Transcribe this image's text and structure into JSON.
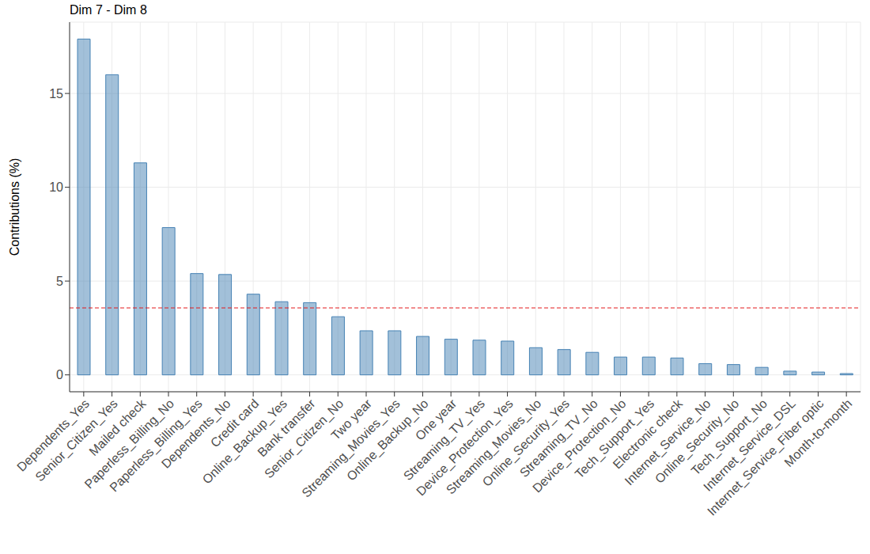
{
  "chart_data": {
    "type": "bar",
    "title": "Dim 7 - Dim 8",
    "y_label": "Contributions (%)",
    "categories": [
      "Dependents_Yes",
      "Senior_Citizen_Yes",
      "Mailed check",
      "Paperless_Billing_No",
      "Paperless_Billing_Yes",
      "Dependents_No",
      "Credit card",
      "Online_Backup_Yes",
      "Bank transfer",
      "Senior_Citizen_No",
      "Two year",
      "Streaming_Movies_Yes",
      "Online_Backup_No",
      "One year",
      "Streaming_TV_Yes",
      "Device_Protection_Yes",
      "Streaming_Movies_No",
      "Online_Security_Yes",
      "Streaming_TV_No",
      "Device_Protection_No",
      "Tech_Support_Yes",
      "Electronic check",
      "Internet_Service_No",
      "Online_Security_No",
      "Tech_Support_No",
      "Internet_Service_DSL",
      "Internet_Service_Fiber optic",
      "Month-to-month"
    ],
    "values": [
      17.9,
      16.0,
      11.3,
      7.85,
      5.4,
      5.35,
      4.3,
      3.9,
      3.85,
      3.1,
      2.35,
      2.35,
      2.05,
      1.9,
      1.85,
      1.8,
      1.45,
      1.35,
      1.2,
      0.95,
      0.95,
      0.9,
      0.6,
      0.55,
      0.4,
      0.2,
      0.15,
      0.07
    ],
    "color": "#4682b4",
    "ylim": [
      -0.9,
      18.8
    ],
    "yticks": [
      0,
      5,
      10,
      15
    ],
    "grid": true,
    "reference_line": {
      "value": 3.57,
      "color": "#e41a1c",
      "line_style": "dashed"
    }
  }
}
